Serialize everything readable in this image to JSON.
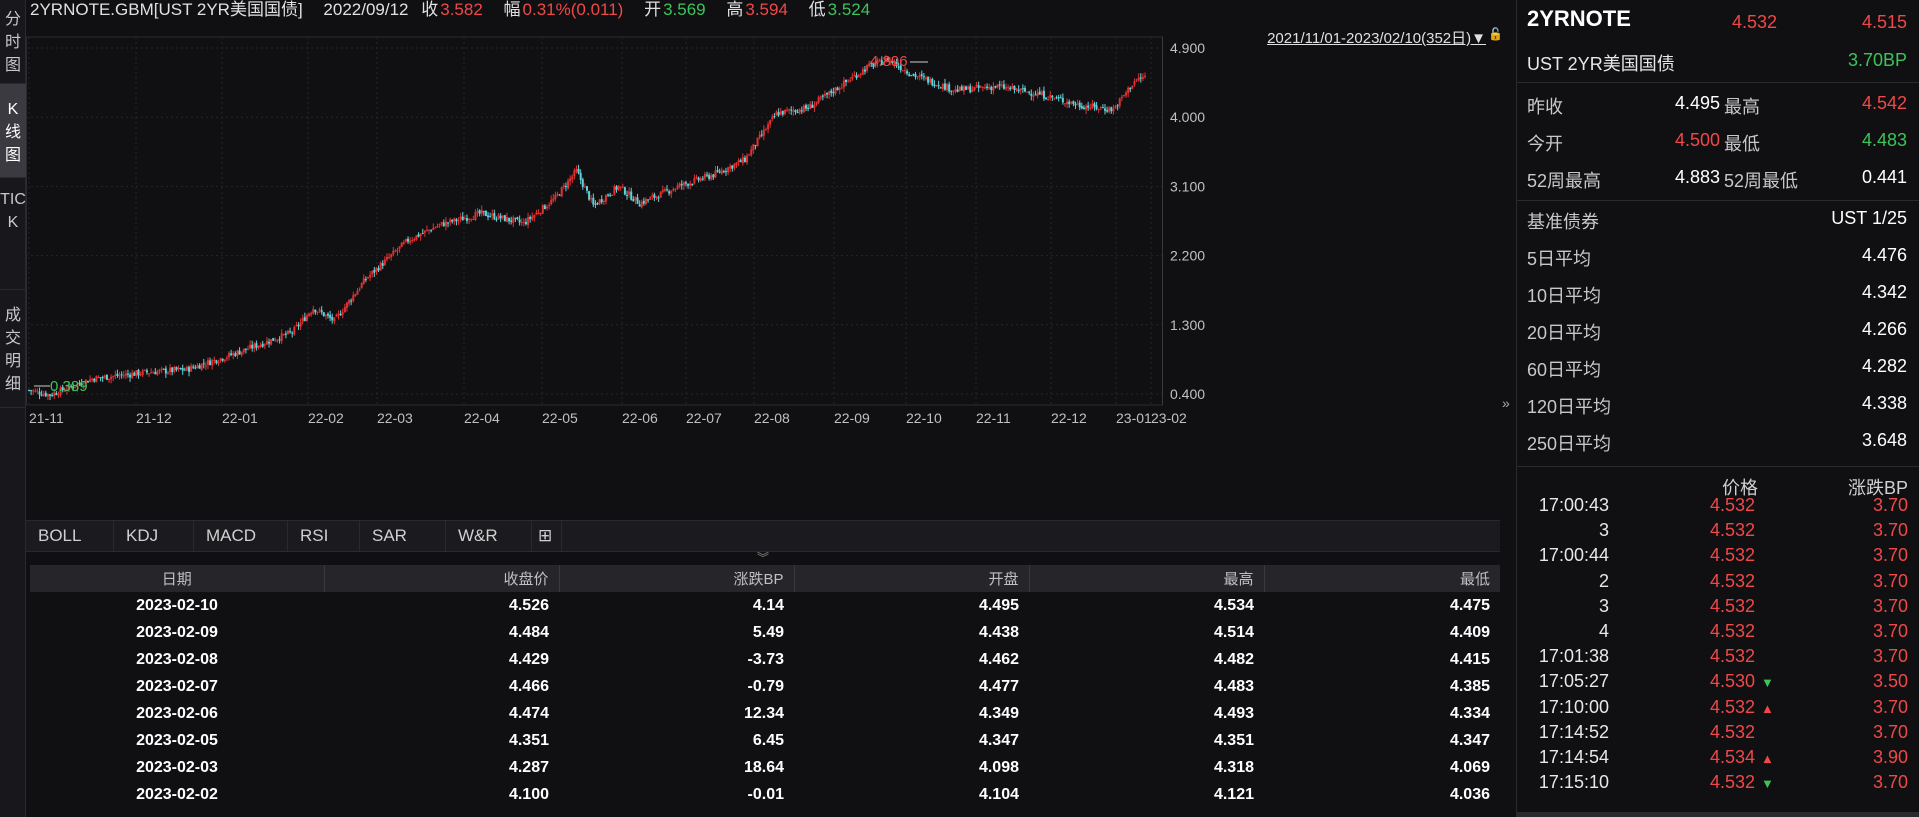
{
  "left_tabs": [
    "分时图",
    "K线图",
    "TICK",
    "成交明细"
  ],
  "header": {
    "symbol": "2YRNOTE.GBM[UST 2YR美国国债]",
    "date": "2022/09/12",
    "close_label": "收",
    "close": "3.582",
    "change_label": "幅",
    "change": "0.31%(0.011)",
    "open_label": "开",
    "open": "3.569",
    "high_label": "高",
    "high": "3.594",
    "low_label": "低",
    "low": "3.524"
  },
  "chart": {
    "range_label": "2021/11/01-2023/02/10(352日)▼",
    "max_label": "4.896",
    "min_label": "0.389"
  },
  "chart_data": {
    "type": "candlestick",
    "y_ticks": [
      "4.900",
      "4.000",
      "3.100",
      "2.200",
      "1.300",
      "0.400"
    ],
    "ylim": [
      0.4,
      4.9
    ],
    "x_ticks": [
      "21-11",
      "21-12",
      "22-01",
      "22-02",
      "22-03",
      "22-04",
      "22-05",
      "22-06",
      "22-07",
      "22-08",
      "22-09",
      "22-10",
      "22-11",
      "22-12",
      "23-01",
      "23-02"
    ],
    "up_color": "#e03030",
    "down_color": "#5fd3d8",
    "approx_close_path": [
      [
        0,
        0.45
      ],
      [
        10,
        0.39
      ],
      [
        30,
        0.6
      ],
      [
        55,
        0.68
      ],
      [
        75,
        0.72
      ],
      [
        95,
        0.9
      ],
      [
        115,
        1.1
      ],
      [
        125,
        1.2
      ],
      [
        135,
        1.52
      ],
      [
        145,
        1.35
      ],
      [
        160,
        1.9
      ],
      [
        180,
        2.4
      ],
      [
        195,
        2.6
      ],
      [
        215,
        2.75
      ],
      [
        235,
        2.62
      ],
      [
        250,
        2.95
      ],
      [
        260,
        3.3
      ],
      [
        268,
        2.85
      ],
      [
        280,
        3.1
      ],
      [
        290,
        2.88
      ],
      [
        310,
        3.12
      ],
      [
        325,
        3.25
      ],
      [
        340,
        3.45
      ],
      [
        355,
        4.05
      ],
      [
        370,
        4.12
      ],
      [
        385,
        4.4
      ],
      [
        398,
        4.65
      ],
      [
        408,
        4.75
      ],
      [
        420,
        4.55
      ],
      [
        440,
        4.35
      ],
      [
        460,
        4.4
      ],
      [
        480,
        4.3
      ],
      [
        500,
        4.15
      ],
      [
        515,
        4.1
      ],
      [
        525,
        4.47
      ],
      [
        530,
        4.53
      ]
    ]
  },
  "indicator_tabs": [
    "BOLL",
    "KDJ",
    "MACD",
    "RSI",
    "SAR",
    "W&R",
    "⊞"
  ],
  "table": {
    "headers": [
      "日期",
      "收盘价",
      "涨跌BP",
      "开盘",
      "最高",
      "最低"
    ],
    "rows": [
      [
        "2023-02-10",
        "4.526",
        "4.14",
        "4.495",
        "4.534",
        "4.475"
      ],
      [
        "2023-02-09",
        "4.484",
        "5.49",
        "4.438",
        "4.514",
        "4.409"
      ],
      [
        "2023-02-08",
        "4.429",
        "-3.73",
        "4.462",
        "4.482",
        "4.415"
      ],
      [
        "2023-02-07",
        "4.466",
        "-0.79",
        "4.477",
        "4.483",
        "4.385"
      ],
      [
        "2023-02-06",
        "4.474",
        "12.34",
        "4.349",
        "4.493",
        "4.334"
      ],
      [
        "2023-02-05",
        "4.351",
        "6.45",
        "4.347",
        "4.351",
        "4.347"
      ],
      [
        "2023-02-03",
        "4.287",
        "18.64",
        "4.098",
        "4.318",
        "4.069"
      ],
      [
        "2023-02-02",
        "4.100",
        "-0.01",
        "4.104",
        "4.121",
        "4.036"
      ]
    ]
  },
  "right_panel": {
    "title": "2YRNOTE",
    "price": "4.532",
    "price2": "4.515",
    "subtitle": "UST 2YR美国国债",
    "change_bp": "3.70BP",
    "prev_close_label": "昨收",
    "prev_close": "4.495",
    "high_label": "最高",
    "high": "4.542",
    "open_label": "今开",
    "open": "4.500",
    "low_label": "最低",
    "low": "4.483",
    "w52_high_label": "52周最高",
    "w52_high": "4.883",
    "w52_low_label": "52周最低",
    "w52_low": "0.441",
    "benchmark_label": "基准债券",
    "benchmark": "UST 1/25",
    "averages": [
      {
        "label": "5日平均",
        "value": "4.476"
      },
      {
        "label": "10日平均",
        "value": "4.342"
      },
      {
        "label": "20日平均",
        "value": "4.266"
      },
      {
        "label": "60日平均",
        "value": "4.282"
      },
      {
        "label": "120日平均",
        "value": "4.338"
      },
      {
        "label": "250日平均",
        "value": "3.648"
      }
    ],
    "tick_header": {
      "price": "价格",
      "change": "涨跌BP"
    },
    "ticks": [
      {
        "time": "17:00:43",
        "price": "4.532",
        "dir": "",
        "change": "3.70"
      },
      {
        "time": "3",
        "price": "4.532",
        "dir": "",
        "change": "3.70"
      },
      {
        "time": "17:00:44",
        "price": "4.532",
        "dir": "",
        "change": "3.70"
      },
      {
        "time": "2",
        "price": "4.532",
        "dir": "",
        "change": "3.70"
      },
      {
        "time": "3",
        "price": "4.532",
        "dir": "",
        "change": "3.70"
      },
      {
        "time": "4",
        "price": "4.532",
        "dir": "",
        "change": "3.70"
      },
      {
        "time": "17:01:38",
        "price": "4.532",
        "dir": "",
        "change": "3.70"
      },
      {
        "time": "17:05:27",
        "price": "4.530",
        "dir": "down",
        "change": "3.50"
      },
      {
        "time": "17:10:00",
        "price": "4.532",
        "dir": "up",
        "change": "3.70"
      },
      {
        "time": "17:14:52",
        "price": "4.532",
        "dir": "",
        "change": "3.70"
      },
      {
        "time": "17:14:54",
        "price": "4.534",
        "dir": "up",
        "change": "3.90"
      },
      {
        "time": "17:15:10",
        "price": "4.532",
        "dir": "down",
        "change": "3.70"
      }
    ]
  }
}
